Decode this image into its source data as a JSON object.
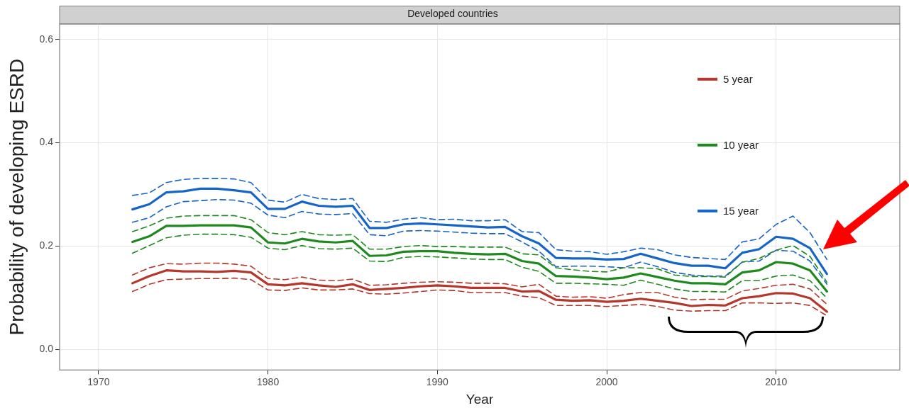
{
  "chart_data": {
    "type": "line",
    "title": "Developed countries",
    "xlabel": "Year",
    "ylabel": "Probability of developing ESRD",
    "x": [
      1972,
      1973,
      1974,
      1975,
      1976,
      1977,
      1978,
      1979,
      1980,
      1981,
      1982,
      1983,
      1984,
      1985,
      1986,
      1987,
      1988,
      1989,
      1990,
      1991,
      1992,
      1993,
      1994,
      1995,
      1996,
      1997,
      1998,
      1999,
      2000,
      2001,
      2002,
      2003,
      2004,
      2005,
      2006,
      2007,
      2008,
      2009,
      2010,
      2011,
      2012,
      2013
    ],
    "xlim": [
      1967.7,
      2017.3
    ],
    "xticks": [
      1970,
      1980,
      1990,
      2000,
      2010
    ],
    "ylim": [
      -0.04,
      0.63
    ],
    "yticks": [
      {
        "value": 0,
        "label": "0.0"
      },
      {
        "value": 0.2,
        "label": "0.2"
      },
      {
        "value": 0.4,
        "label": "0.4"
      },
      {
        "value": 0.6,
        "label": "0.6"
      }
    ],
    "grid": true,
    "legend": "top right",
    "marker": "none",
    "series": [
      {
        "name": "5 year",
        "color": "#b5362a",
        "values": [
          0.128,
          0.142,
          0.153,
          0.151,
          0.151,
          0.15,
          0.152,
          0.149,
          0.126,
          0.124,
          0.128,
          0.124,
          0.121,
          0.126,
          0.115,
          0.117,
          0.119,
          0.122,
          0.124,
          0.122,
          0.119,
          0.119,
          0.119,
          0.112,
          0.113,
          0.096,
          0.094,
          0.095,
          0.092,
          0.094,
          0.098,
          0.094,
          0.09,
          0.084,
          0.086,
          0.085,
          0.099,
          0.103,
          0.109,
          0.108,
          0.099,
          0.073
        ]
      },
      {
        "color": "#b5362a",
        "line_style": "dashed",
        "values": [
          0.144,
          0.158,
          0.166,
          0.165,
          0.167,
          0.167,
          0.165,
          0.161,
          0.137,
          0.135,
          0.14,
          0.134,
          0.133,
          0.136,
          0.124,
          0.125,
          0.128,
          0.13,
          0.131,
          0.13,
          0.128,
          0.128,
          0.127,
          0.121,
          0.126,
          0.103,
          0.101,
          0.102,
          0.099,
          0.106,
          0.11,
          0.11,
          0.101,
          0.096,
          0.097,
          0.097,
          0.113,
          0.118,
          0.124,
          0.126,
          0.117,
          0.087
        ]
      },
      {
        "color": "#b5362a",
        "line_style": "dashed",
        "values": [
          0.112,
          0.126,
          0.135,
          0.136,
          0.137,
          0.137,
          0.138,
          0.135,
          0.115,
          0.114,
          0.119,
          0.115,
          0.115,
          0.117,
          0.108,
          0.107,
          0.109,
          0.112,
          0.115,
          0.114,
          0.11,
          0.11,
          0.11,
          0.103,
          0.1,
          0.085,
          0.085,
          0.085,
          0.083,
          0.085,
          0.087,
          0.083,
          0.076,
          0.074,
          0.075,
          0.075,
          0.09,
          0.09,
          0.089,
          0.09,
          0.085,
          0.065
        ]
      },
      {
        "name": "10 year",
        "color": "#1e8a1e",
        "values": [
          0.208,
          0.219,
          0.239,
          0.239,
          0.24,
          0.24,
          0.24,
          0.236,
          0.207,
          0.205,
          0.214,
          0.209,
          0.207,
          0.21,
          0.181,
          0.182,
          0.189,
          0.19,
          0.19,
          0.187,
          0.185,
          0.184,
          0.185,
          0.171,
          0.166,
          0.142,
          0.141,
          0.139,
          0.136,
          0.139,
          0.147,
          0.14,
          0.133,
          0.128,
          0.128,
          0.126,
          0.149,
          0.153,
          0.169,
          0.166,
          0.153,
          0.112
        ]
      },
      {
        "color": "#1e8a1e",
        "line_style": "dashed",
        "values": [
          0.228,
          0.239,
          0.254,
          0.258,
          0.259,
          0.259,
          0.259,
          0.251,
          0.226,
          0.222,
          0.228,
          0.222,
          0.221,
          0.222,
          0.194,
          0.194,
          0.199,
          0.201,
          0.199,
          0.199,
          0.198,
          0.198,
          0.198,
          0.185,
          0.183,
          0.158,
          0.154,
          0.151,
          0.15,
          0.158,
          0.158,
          0.156,
          0.144,
          0.141,
          0.141,
          0.14,
          0.169,
          0.176,
          0.192,
          0.201,
          0.18,
          0.13
        ]
      },
      {
        "color": "#1e8a1e",
        "line_style": "dashed",
        "values": [
          0.186,
          0.201,
          0.216,
          0.221,
          0.223,
          0.223,
          0.222,
          0.217,
          0.196,
          0.193,
          0.201,
          0.195,
          0.194,
          0.196,
          0.171,
          0.17,
          0.178,
          0.18,
          0.179,
          0.177,
          0.175,
          0.174,
          0.174,
          0.159,
          0.151,
          0.128,
          0.128,
          0.127,
          0.126,
          0.124,
          0.134,
          0.126,
          0.117,
          0.112,
          0.112,
          0.111,
          0.133,
          0.133,
          0.142,
          0.144,
          0.133,
          0.099
        ]
      },
      {
        "name": "15 year",
        "color": "#1565c8",
        "values": [
          0.271,
          0.281,
          0.304,
          0.306,
          0.311,
          0.311,
          0.308,
          0.304,
          0.272,
          0.272,
          0.286,
          0.278,
          0.276,
          0.278,
          0.235,
          0.235,
          0.242,
          0.244,
          0.242,
          0.24,
          0.238,
          0.236,
          0.237,
          0.219,
          0.205,
          0.177,
          0.176,
          0.176,
          0.174,
          0.175,
          0.185,
          0.176,
          0.167,
          0.162,
          0.162,
          0.157,
          0.187,
          0.194,
          0.218,
          0.214,
          0.196,
          0.146
        ]
      },
      {
        "color": "#1565c8",
        "line_style": "dashed",
        "values": [
          0.298,
          0.303,
          0.323,
          0.329,
          0.331,
          0.331,
          0.33,
          0.323,
          0.289,
          0.285,
          0.3,
          0.292,
          0.29,
          0.292,
          0.248,
          0.246,
          0.252,
          0.255,
          0.251,
          0.252,
          0.249,
          0.249,
          0.251,
          0.228,
          0.226,
          0.193,
          0.19,
          0.189,
          0.184,
          0.189,
          0.196,
          0.193,
          0.183,
          0.178,
          0.176,
          0.174,
          0.208,
          0.214,
          0.242,
          0.258,
          0.226,
          0.174
        ]
      },
      {
        "color": "#1565c8",
        "line_style": "dashed",
        "values": [
          0.246,
          0.255,
          0.276,
          0.286,
          0.288,
          0.29,
          0.289,
          0.283,
          0.26,
          0.255,
          0.267,
          0.262,
          0.261,
          0.263,
          0.222,
          0.22,
          0.229,
          0.23,
          0.229,
          0.227,
          0.225,
          0.224,
          0.224,
          0.208,
          0.19,
          0.16,
          0.161,
          0.161,
          0.16,
          0.158,
          0.169,
          0.16,
          0.149,
          0.144,
          0.142,
          0.142,
          0.169,
          0.171,
          0.192,
          0.19,
          0.171,
          0.126
        ]
      }
    ]
  }
}
